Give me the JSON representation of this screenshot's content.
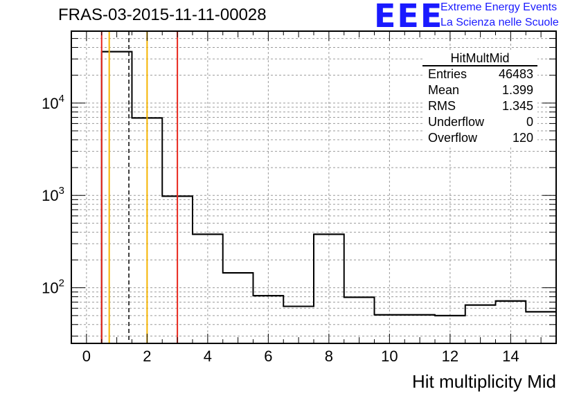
{
  "title": "FRAS-03-2015-11-11-00028",
  "logo": {
    "text": "EEE",
    "line1": "Extreme Energy Events",
    "line2": "La Scienza nelle Scuole",
    "color": "#1a1aff"
  },
  "stats": {
    "name": "HitMultMid",
    "rows": [
      {
        "label": "Entries",
        "value": "46483"
      },
      {
        "label": "Mean",
        "value": "1.399"
      },
      {
        "label": "RMS",
        "value": "1.345"
      },
      {
        "label": "Underflow",
        "value": "0"
      },
      {
        "label": "Overflow",
        "value": "120"
      }
    ]
  },
  "chart_data": {
    "type": "bar",
    "style": "step-histogram",
    "xlabel": "Hit multiplicity Mid",
    "ylabel": "",
    "xlim": [
      -0.5,
      15.5
    ],
    "ylim": [
      25,
      60000
    ],
    "y_scale": "log",
    "grid": true,
    "x_ticks": [
      0,
      2,
      4,
      6,
      8,
      10,
      12,
      14
    ],
    "y_ticks": [
      {
        "value": 10000,
        "base": "10",
        "exp": "4"
      },
      {
        "value": 1000,
        "base": "10",
        "exp": "3"
      },
      {
        "value": 100,
        "base": "10",
        "exp": "2"
      }
    ],
    "bins": {
      "low_edges": [
        0.5,
        1.5,
        2.5,
        3.5,
        4.5,
        5.5,
        6.5,
        7.5,
        8.5,
        9.5,
        10.5,
        11.5,
        12.5,
        13.5,
        14.5
      ],
      "width": 1,
      "values": [
        36000,
        6900,
        980,
        380,
        145,
        82,
        63,
        380,
        79,
        51,
        51,
        50,
        65,
        72,
        55
      ]
    },
    "vertical_lines": [
      {
        "x": 0.5,
        "color": "#e8261c",
        "style": "solid"
      },
      {
        "x": 0.75,
        "color": "#f5b400",
        "style": "solid"
      },
      {
        "x": 1.399,
        "color": "#000000",
        "style": "dashed"
      },
      {
        "x": 2.0,
        "color": "#f5b400",
        "style": "solid"
      },
      {
        "x": 3.0,
        "color": "#e8261c",
        "style": "solid"
      }
    ]
  }
}
